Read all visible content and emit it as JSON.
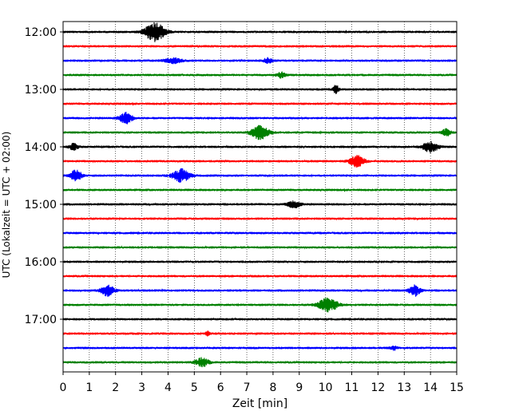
{
  "chart_data": {
    "type": "line",
    "title": "",
    "xlabel": "Zeit  [min]",
    "ylabel": "UTC (Lokalzeit = UTC + 02:00)",
    "xlim": [
      0,
      15
    ],
    "x_ticks": [
      "0",
      "1",
      "2",
      "3",
      "4",
      "5",
      "6",
      "7",
      "8",
      "9",
      "10",
      "11",
      "12",
      "13",
      "14",
      "15"
    ],
    "y_ticks": [
      "12:00",
      "13:00",
      "14:00",
      "15:00",
      "16:00",
      "17:00"
    ],
    "grid": "vertical dotted",
    "trace_interval_minutes": 15,
    "start_time": "12:00",
    "colors": [
      "#000000",
      "#ff0000",
      "#0000ff",
      "#008000"
    ],
    "traces": [
      {
        "events": [
          {
            "t": 3.5,
            "amp": 1.0,
            "w": 0.9
          }
        ]
      },
      {
        "events": []
      },
      {
        "events": [
          {
            "t": 4.2,
            "amp": 0.25,
            "w": 0.8
          },
          {
            "t": 7.8,
            "amp": 0.25,
            "w": 0.4
          }
        ]
      },
      {
        "events": [
          {
            "t": 8.3,
            "amp": 0.3,
            "w": 0.4
          }
        ]
      },
      {
        "events": [
          {
            "t": 10.4,
            "amp": 0.45,
            "w": 0.25
          }
        ]
      },
      {
        "events": []
      },
      {
        "events": [
          {
            "t": 2.4,
            "amp": 0.55,
            "w": 0.6
          }
        ]
      },
      {
        "events": [
          {
            "t": 7.5,
            "amp": 0.7,
            "w": 0.8
          },
          {
            "t": 14.6,
            "amp": 0.35,
            "w": 0.4
          }
        ]
      },
      {
        "events": [
          {
            "t": 0.4,
            "amp": 0.35,
            "w": 0.4
          },
          {
            "t": 14.0,
            "amp": 0.55,
            "w": 0.7
          }
        ]
      },
      {
        "events": [
          {
            "t": 11.2,
            "amp": 0.55,
            "w": 0.7
          }
        ]
      },
      {
        "events": [
          {
            "t": 0.5,
            "amp": 0.6,
            "w": 0.5
          },
          {
            "t": 4.5,
            "amp": 0.65,
            "w": 0.8
          }
        ]
      },
      {
        "events": []
      },
      {
        "events": [
          {
            "t": 8.8,
            "amp": 0.35,
            "w": 0.6
          }
        ]
      },
      {
        "events": []
      },
      {
        "events": []
      },
      {
        "events": []
      },
      {
        "events": []
      },
      {
        "events": []
      },
      {
        "events": [
          {
            "t": 1.7,
            "amp": 0.55,
            "w": 0.6
          },
          {
            "t": 13.4,
            "amp": 0.55,
            "w": 0.5
          }
        ]
      },
      {
        "events": [
          {
            "t": 10.1,
            "amp": 0.7,
            "w": 0.9
          }
        ]
      },
      {
        "events": []
      },
      {
        "events": [
          {
            "t": 5.5,
            "amp": 0.2,
            "w": 0.2
          }
        ]
      },
      {
        "events": [
          {
            "t": 12.6,
            "amp": 0.2,
            "w": 0.3
          }
        ]
      },
      {
        "events": [
          {
            "t": 5.3,
            "amp": 0.45,
            "w": 0.6
          }
        ]
      }
    ]
  }
}
